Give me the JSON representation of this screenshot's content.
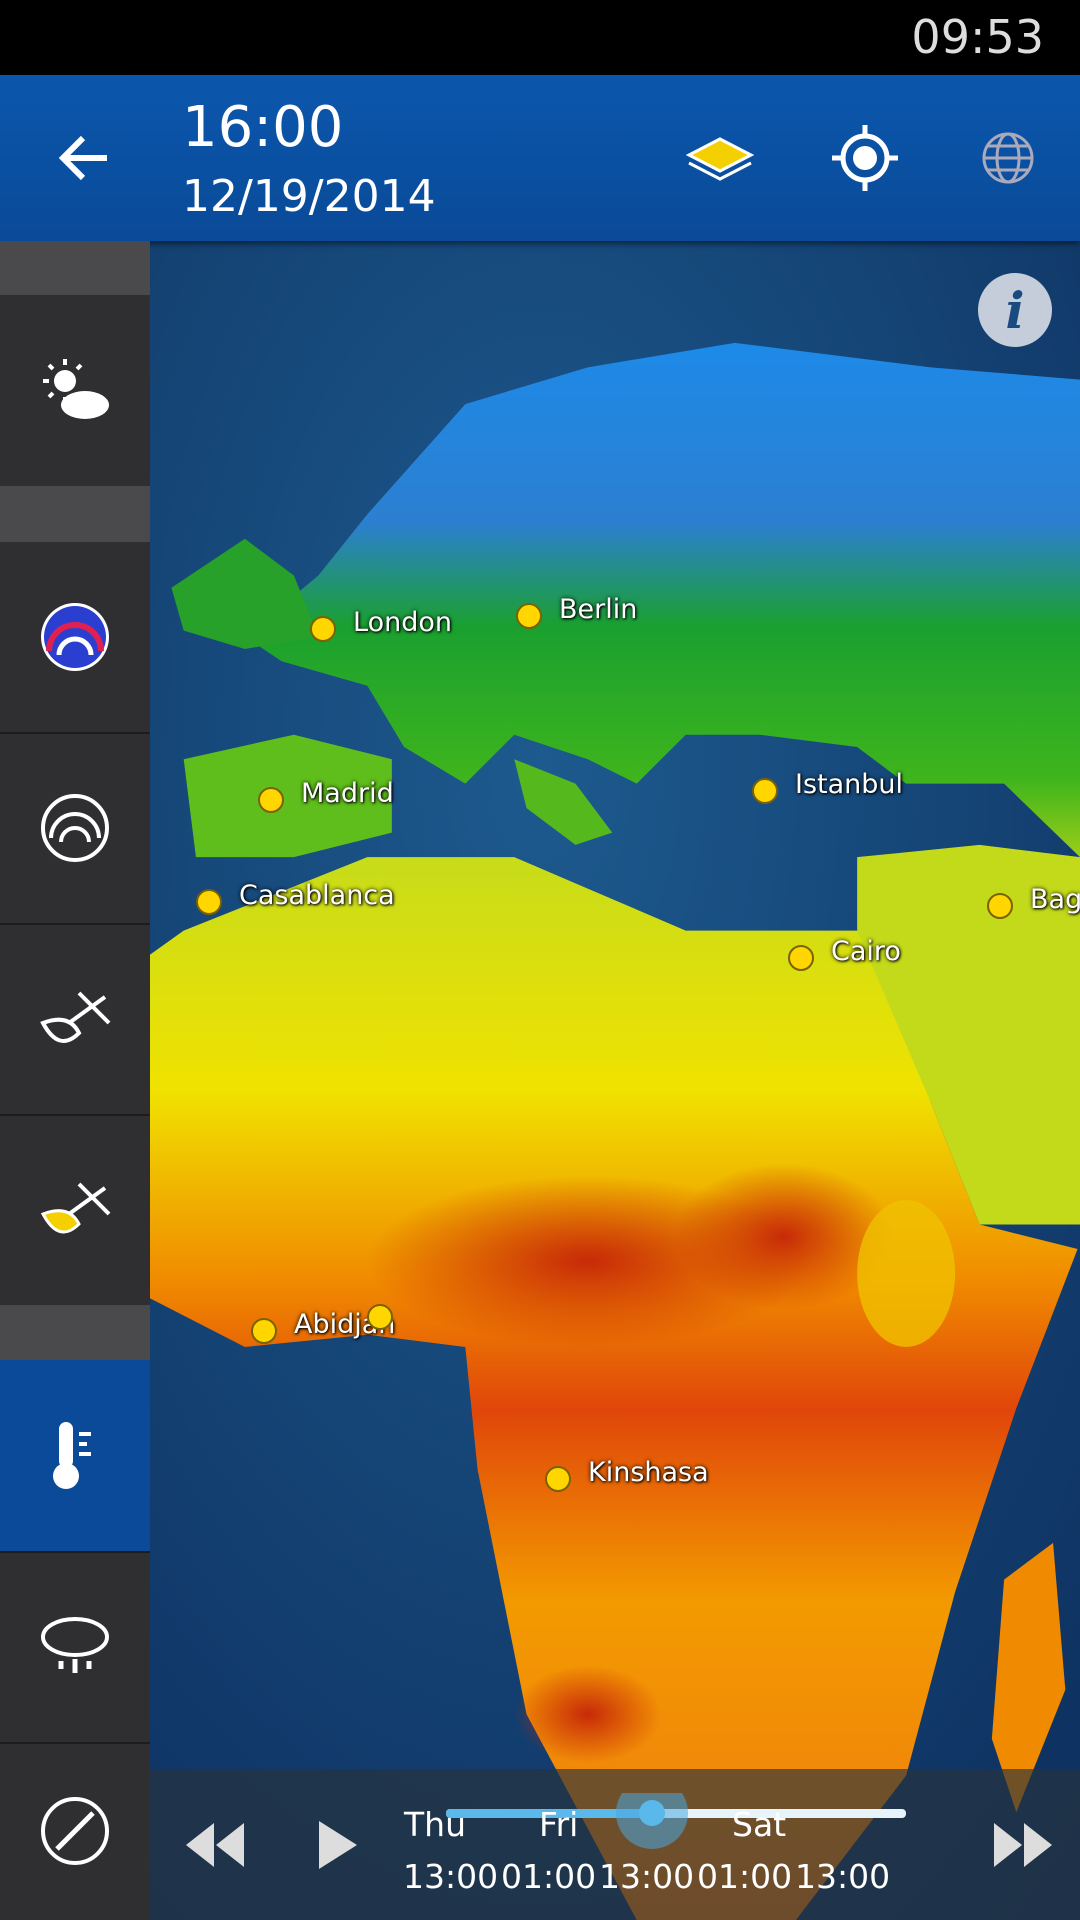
{
  "status_bar": {
    "time": "09:53"
  },
  "header": {
    "time": "16:00",
    "date": "12/19/2014"
  },
  "map": {
    "cities": [
      "London",
      "Berlin",
      "Madrid",
      "Istanbul",
      "Casablanca",
      "Cairo",
      "Bag",
      "Abidjan",
      "Kinshasa"
    ]
  },
  "timeline": {
    "days": [
      "Thu",
      "Fri",
      "Sat"
    ],
    "times": [
      "13:00",
      "01:00",
      "13:00",
      "01:00",
      "13:00"
    ]
  }
}
